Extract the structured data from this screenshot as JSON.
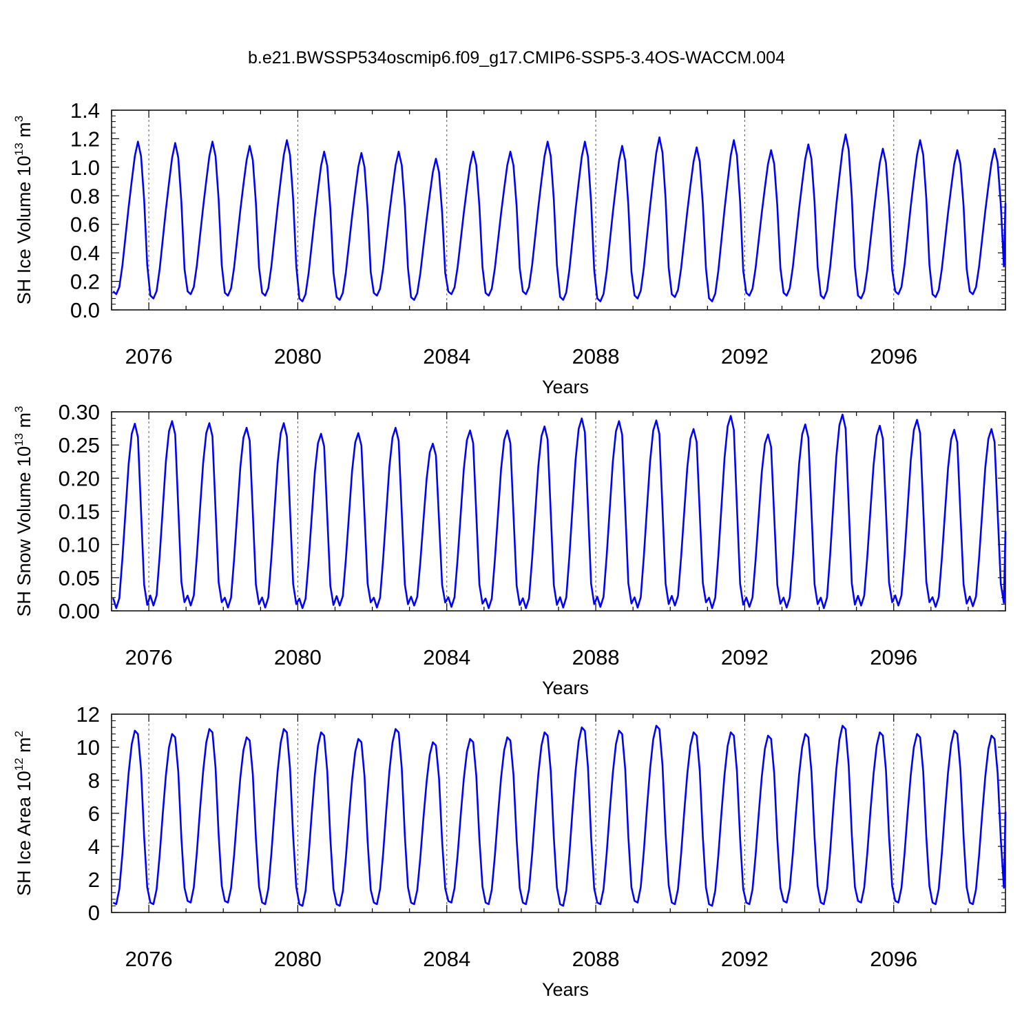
{
  "figure": {
    "title": "b.e21.BWSSP534oscmip6.f09_g17.CMIP6-SSP5-3.4OS-WACCM.004"
  },
  "style": {
    "line_color": "#0000ff",
    "frame_color": "#000000",
    "year_line_color": "#555555"
  },
  "chart_data": [
    {
      "type": "line",
      "title": "",
      "xlabel": "Years",
      "ylabel": {
        "prefix": "SH Ice Volume 10",
        "exponent": "13",
        "unit": " m",
        "unit_exp": "3"
      },
      "xlim": [
        2075,
        2099
      ],
      "ylim": [
        0,
        1.4
      ],
      "yticks": [
        "0.0",
        "0.2",
        "0.4",
        "0.6",
        "0.8",
        "1.0",
        "1.2",
        "1.4"
      ],
      "ytick_values": [
        0,
        0.2,
        0.4,
        0.6,
        0.8,
        1.0,
        1.2,
        1.4
      ],
      "xticks": [
        "2076",
        "2080",
        "2084",
        "2088",
        "2092",
        "2096"
      ],
      "xtick_values": [
        2076,
        2080,
        2084,
        2088,
        2092,
        2096
      ],
      "grid": false,
      "year_dashed_lines": true,
      "series": [
        {
          "monthly_shape": [
            0.12,
            0.1,
            0.15,
            0.3,
            0.5,
            0.7,
            0.88,
            1.05,
            1.15,
            1.05,
            0.75,
            0.3
          ],
          "annual_min": [
            0.11,
            0.08,
            0.11,
            0.1,
            0.1,
            0.06,
            0.07,
            0.1,
            0.07,
            0.11,
            0.1,
            0.11,
            0.07,
            0.06,
            0.08,
            0.09,
            0.06,
            0.1,
            0.1,
            0.08,
            0.08,
            0.11,
            0.09,
            0.11
          ],
          "annual_max": [
            1.18,
            1.17,
            1.18,
            1.15,
            1.19,
            1.11,
            1.1,
            1.11,
            1.06,
            1.11,
            1.11,
            1.18,
            1.18,
            1.15,
            1.21,
            1.14,
            1.19,
            1.12,
            1.16,
            1.23,
            1.13,
            1.19,
            1.12,
            1.13
          ],
          "end_value": 0.75
        }
      ]
    },
    {
      "type": "line",
      "title": "",
      "xlabel": "Years",
      "ylabel": {
        "prefix": "SH Snow Volume 10",
        "exponent": "13",
        "unit": " m",
        "unit_exp": "3"
      },
      "xlim": [
        2075,
        2099
      ],
      "ylim": [
        0,
        0.3
      ],
      "yticks": [
        "0.00",
        "0.05",
        "0.10",
        "0.15",
        "0.20",
        "0.25",
        "0.30"
      ],
      "ytick_values": [
        0,
        0.05,
        0.1,
        0.15,
        0.2,
        0.25,
        0.3
      ],
      "xticks": [
        "2076",
        "2080",
        "2084",
        "2088",
        "2092",
        "2096"
      ],
      "xtick_values": [
        2076,
        2080,
        2084,
        2088,
        2092,
        2096
      ],
      "grid": false,
      "year_dashed_lines": true,
      "series": [
        {
          "monthly_shape": [
            0.02,
            0.005,
            0.02,
            0.08,
            0.15,
            0.22,
            0.265,
            0.28,
            0.26,
            0.15,
            0.04,
            0.01
          ],
          "annual_min": [
            0.004,
            0.008,
            0.008,
            0.005,
            0.005,
            0.004,
            0.008,
            0.005,
            0.008,
            0.006,
            0.004,
            0.004,
            0.005,
            0.006,
            0.005,
            0.008,
            0.004,
            0.006,
            0.005,
            0.004,
            0.008,
            0.008,
            0.006,
            0.007
          ],
          "annual_max": [
            0.282,
            0.286,
            0.283,
            0.276,
            0.283,
            0.267,
            0.268,
            0.276,
            0.252,
            0.272,
            0.272,
            0.278,
            0.29,
            0.286,
            0.287,
            0.274,
            0.294,
            0.266,
            0.281,
            0.296,
            0.279,
            0.288,
            0.273,
            0.274
          ],
          "end_value": 0.12
        }
      ]
    },
    {
      "type": "line",
      "title": "",
      "xlabel": "Years",
      "ylabel": {
        "prefix": "SH Ice Area 10",
        "exponent": "12",
        "unit": " m",
        "unit_exp": "2"
      },
      "xlim": [
        2075,
        2099
      ],
      "ylim": [
        0,
        12
      ],
      "yticks": [
        "0",
        "2",
        "4",
        "6",
        "8",
        "10",
        "12"
      ],
      "ytick_values": [
        0,
        2,
        4,
        6,
        8,
        10,
        12
      ],
      "xticks": [
        "2076",
        "2080",
        "2084",
        "2088",
        "2092",
        "2096"
      ],
      "xtick_values": [
        2076,
        2080,
        2084,
        2088,
        2092,
        2096
      ],
      "grid": false,
      "year_dashed_lines": true,
      "series": [
        {
          "monthly_shape": [
            0.6,
            0.5,
            1.4,
            3.5,
            6.0,
            8.3,
            10.0,
            10.8,
            10.6,
            8.5,
            4.5,
            1.5
          ],
          "annual_min": [
            0.5,
            0.5,
            0.6,
            0.6,
            0.5,
            0.4,
            0.4,
            0.5,
            0.5,
            0.6,
            0.5,
            0.5,
            0.4,
            0.5,
            0.6,
            0.5,
            0.4,
            0.5,
            0.6,
            0.5,
            0.6,
            0.6,
            0.5,
            0.5
          ],
          "annual_max": [
            11.0,
            10.8,
            11.1,
            10.6,
            11.1,
            10.9,
            10.5,
            11.1,
            10.3,
            10.5,
            10.6,
            10.9,
            11.2,
            11.0,
            11.3,
            10.9,
            10.9,
            10.7,
            10.8,
            11.3,
            10.9,
            10.8,
            11.0,
            10.7
          ],
          "end_value": 6.1
        }
      ]
    }
  ]
}
